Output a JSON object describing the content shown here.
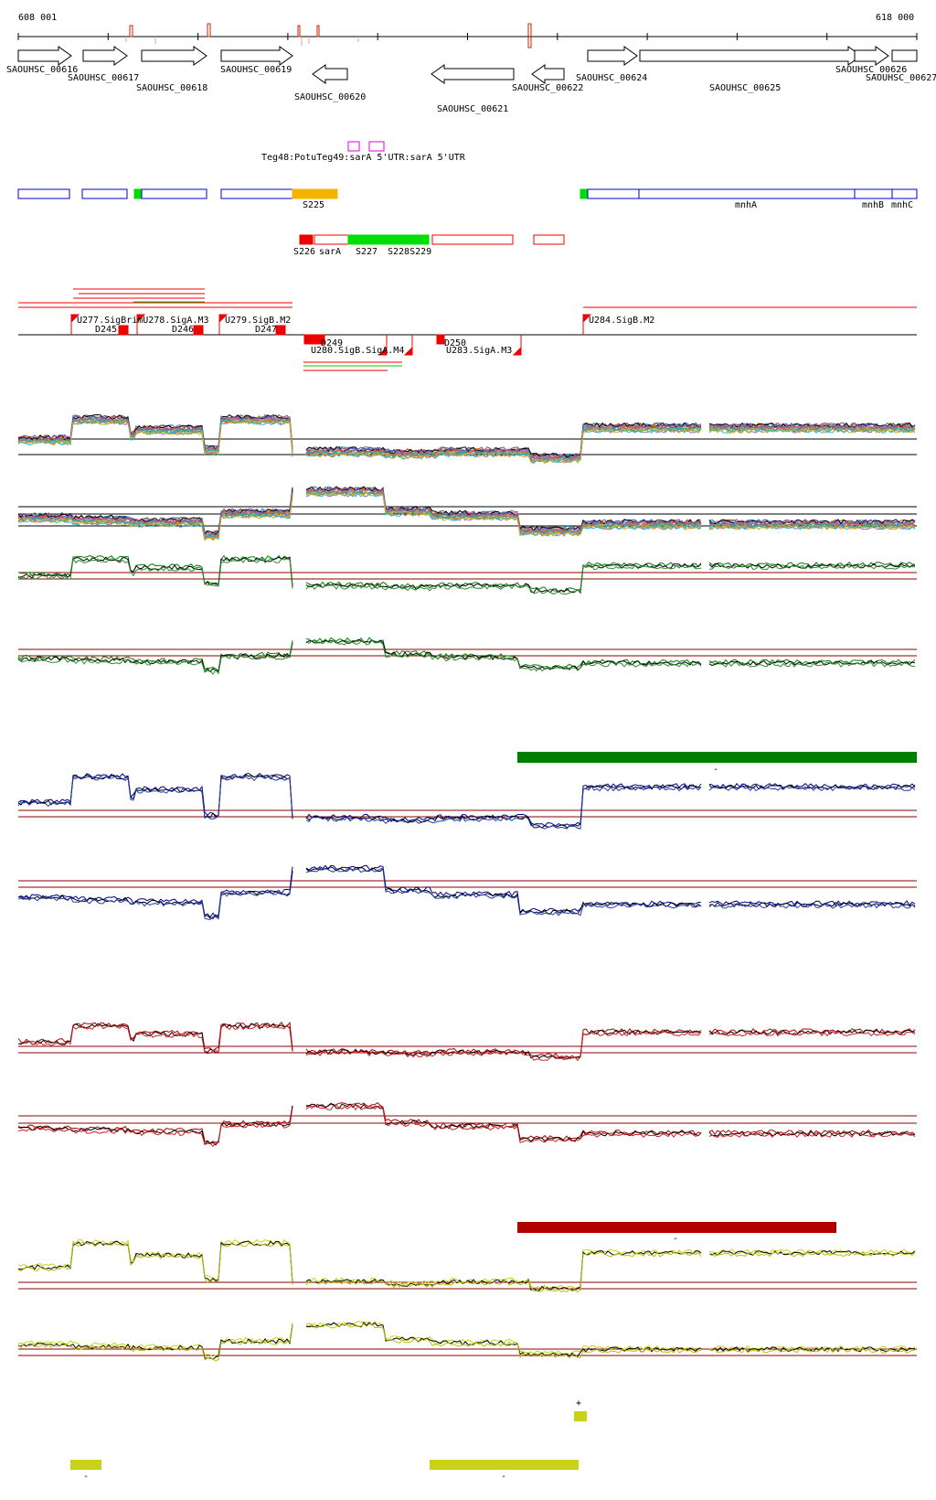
{
  "coords": {
    "start": "608 001",
    "end": "618 000"
  },
  "genes": [
    {
      "label": "SAOUHSC_00616",
      "strand": "+"
    },
    {
      "label": "SAOUHSC_00617",
      "strand": "+"
    },
    {
      "label": "SAOUHSC_00618",
      "strand": "+"
    },
    {
      "label": "SAOUHSC_00619",
      "strand": "+"
    },
    {
      "label": "SAOUHSC_00620",
      "strand": "-"
    },
    {
      "label": "SAOUHSC_00621",
      "strand": "-"
    },
    {
      "label": "SAOUHSC_00622",
      "strand": "-"
    },
    {
      "label": "SAOUHSC_00624",
      "strand": "+"
    },
    {
      "label": "SAOUHSC_00625",
      "strand": "+"
    },
    {
      "label": "SAOUHSC_00626",
      "strand": "+"
    },
    {
      "label": "SAOUHSC_00627",
      "strand": "+"
    }
  ],
  "rna_overlap_label": "Teg48:PotuTeg49:sarA 5'UTR:sarA 5'UTR",
  "blue_features": [
    {
      "label": ""
    },
    {
      "label": ""
    },
    {
      "label": ""
    },
    {
      "label": ""
    },
    {
      "label": "S225"
    },
    {
      "label": ""
    },
    {
      "label": "mnhA"
    },
    {
      "label": "mnhB"
    },
    {
      "label": "mnhC"
    }
  ],
  "red_features": [
    {
      "label": "S226"
    },
    {
      "label": "sarA"
    },
    {
      "label": "S227"
    },
    {
      "label": "S228S229"
    },
    {
      "label": ""
    },
    {
      "label": ""
    }
  ],
  "promoter_labels": [
    {
      "label": "U277.SigBrimU278.SigA.M3"
    },
    {
      "label": "U279.SigB.M2"
    },
    {
      "label": "U284.SigB.M2"
    },
    {
      "label": "D245"
    },
    {
      "label": "D246"
    },
    {
      "label": "D247"
    },
    {
      "label": "D249"
    },
    {
      "label": "D250"
    },
    {
      "label": "U280.SigB.SigA.M4"
    },
    {
      "label": "U283.SigA.M3"
    }
  ],
  "track_marks": {
    "dark_green": "-",
    "dark_red": "-",
    "yellow_small": "+",
    "yellow_left": "-",
    "yellow_right": "-"
  },
  "colors": {
    "gene_outline": "#000000",
    "blue": "#0000cc",
    "red": "#ee0000",
    "green": "#00dd00",
    "orange": "#f5b400",
    "magenta": "#dd00dd",
    "dark_green": "#008000",
    "dark_blue": "#00008b",
    "dark_red": "#b00000",
    "yellow": "#c8d217",
    "threshold": "#8b0000"
  }
}
